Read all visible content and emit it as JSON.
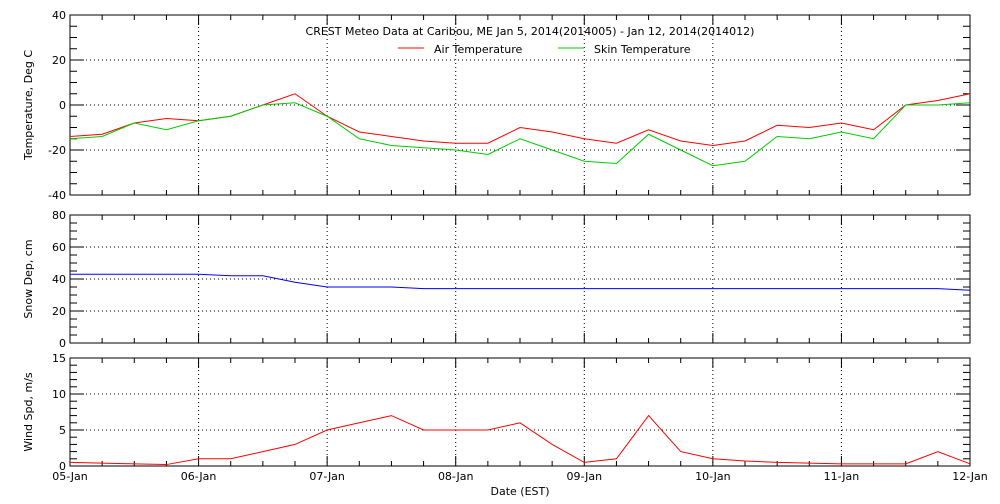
{
  "chart_data": [
    {
      "type": "line",
      "title": "CREST Meteo Data at Caribou, ME   Jan  5, 2014(2014005) - Jan 12, 2014(2014012)",
      "ylabel": "Temperature, Deg C",
      "ylim": [
        -40,
        40
      ],
      "yticks": [
        -40,
        -20,
        0,
        20,
        40
      ],
      "grid": true,
      "legend": "top-center",
      "series": [
        {
          "name": "Air Temperature",
          "color": "#ff0000",
          "values": [
            -14,
            -13,
            -8,
            -6,
            -7,
            -5,
            0,
            5,
            -5,
            -12,
            -14,
            -16,
            -17,
            -17,
            -10,
            -12,
            -15,
            -17,
            -11,
            -16,
            -18,
            -16,
            -9,
            -10,
            -8,
            -11,
            0,
            2,
            5
          ]
        },
        {
          "name": "Skin Temperature",
          "color": "#00cc00",
          "values": [
            -15,
            -14,
            -8,
            -11,
            -7,
            -5,
            0,
            1,
            -5,
            -15,
            -18,
            -19,
            -20,
            -22,
            -15,
            -20,
            -25,
            -26,
            -13,
            -20,
            -27,
            -25,
            -14,
            -15,
            -12,
            -15,
            0,
            0,
            1
          ]
        }
      ]
    },
    {
      "type": "line",
      "ylabel": "Snow Dep, cm",
      "ylim": [
        0,
        80
      ],
      "yticks": [
        0,
        20,
        40,
        60,
        80
      ],
      "grid": true,
      "series": [
        {
          "color": "#0000ff",
          "values": [
            43,
            43,
            43,
            43,
            43,
            42,
            42,
            38,
            35,
            35,
            35,
            34,
            34,
            34,
            34,
            34,
            34,
            34,
            34,
            34,
            34,
            34,
            34,
            34,
            34,
            34,
            34,
            34,
            33
          ]
        }
      ]
    },
    {
      "type": "line",
      "ylabel": "Wind Spd, m/s",
      "xlabel": "Date (EST)",
      "ylim": [
        0,
        15
      ],
      "yticks": [
        0,
        5,
        10,
        15
      ],
      "grid": true,
      "series": [
        {
          "color": "#ff0000",
          "values": [
            0.5,
            0.4,
            0.3,
            0.2,
            1,
            1,
            2,
            3,
            5,
            6,
            7,
            5,
            5,
            5,
            6,
            3,
            0.5,
            1,
            7,
            2,
            1,
            0.7,
            0.5,
            0.4,
            0.3,
            0.3,
            0.3,
            2,
            0.3
          ]
        }
      ]
    }
  ],
  "x": {
    "start": "2014-01-05 00:00",
    "end": "2014-01-12 00:00",
    "step_hours": 6,
    "ticklabels": [
      "05-Jan",
      "06-Jan",
      "07-Jan",
      "08-Jan",
      "09-Jan",
      "10-Jan",
      "11-Jan",
      "12-Jan"
    ]
  }
}
